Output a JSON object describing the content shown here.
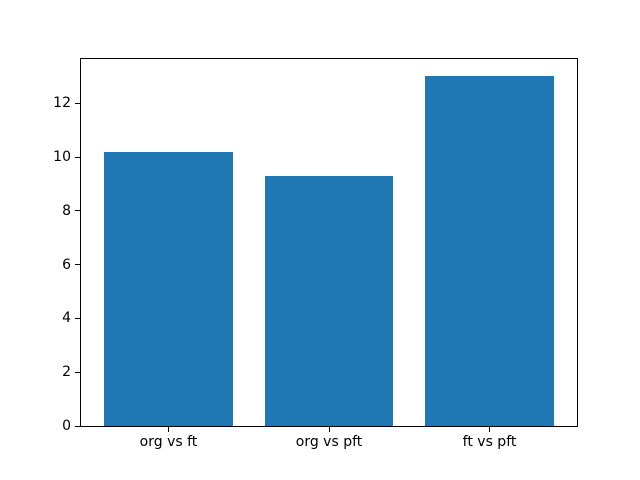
{
  "figure": {
    "background_color": "#ffffff",
    "axes_edge_color": "#000000",
    "tick_label_color": "#000000"
  },
  "chart_data": {
    "type": "bar",
    "title": "",
    "xlabel": "",
    "ylabel": "",
    "categories": [
      "org vs ft",
      "org vs pft",
      "ft vs pft"
    ],
    "values": [
      10.2,
      9.3,
      13.0
    ],
    "bar_color": "#1f77b4",
    "bar_width": 0.8,
    "x_positions": [
      0,
      1,
      2
    ],
    "xlim": [
      -0.545,
      2.545
    ],
    "ylim": [
      0,
      13.65
    ],
    "yticks": [
      0,
      2,
      4,
      6,
      8,
      10,
      12
    ],
    "grid": false,
    "legend": false
  }
}
